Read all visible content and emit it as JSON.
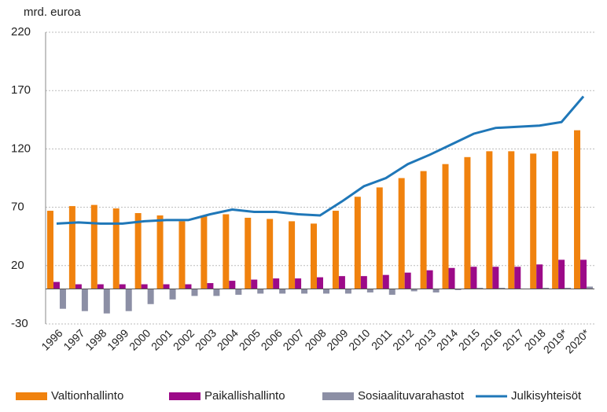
{
  "chart_data": {
    "type": "bar_line",
    "y_label": "mrd. euroa",
    "categories": [
      "1996",
      "1997",
      "1998",
      "1999",
      "2000",
      "2001",
      "2002",
      "2003",
      "2004",
      "2005",
      "2006",
      "2007",
      "2008",
      "2009",
      "2010",
      "2011",
      "2012",
      "2013",
      "2014",
      "2015",
      "2016",
      "2017",
      "2018",
      "2019*",
      "2020*"
    ],
    "series": [
      {
        "name": "Valtionhallinto",
        "color": "#f0820e",
        "kind": "bar",
        "values": [
          67,
          71,
          72,
          69,
          65,
          63,
          58,
          63,
          64,
          61,
          60,
          58,
          56,
          67,
          79,
          87,
          95,
          101,
          107,
          113,
          118,
          118,
          116,
          118,
          136
        ]
      },
      {
        "name": "Paikallishallinto",
        "color": "#9c0a88",
        "kind": "bar",
        "values": [
          6,
          4,
          4,
          4,
          4,
          4,
          4,
          5,
          7,
          8,
          9,
          9,
          10,
          11,
          11,
          12,
          14,
          16,
          18,
          19,
          19,
          19,
          21,
          25,
          25
        ]
      },
      {
        "name": "Sosiaalituvarahastot",
        "color": "#8c8fa5",
        "kind": "bar",
        "values": [
          -17,
          -19,
          -21,
          -19,
          -13,
          -9,
          -6,
          -6,
          -5,
          -4,
          -4,
          -4,
          -4,
          -4,
          -3,
          -5,
          -2,
          -3,
          -1,
          1,
          1,
          0,
          1,
          1,
          2
        ]
      },
      {
        "name": "Julkisyhteisöt",
        "color": "#1f77b8",
        "kind": "line",
        "values": [
          56,
          57,
          56,
          56,
          58,
          59,
          59,
          64,
          68,
          66,
          66,
          64,
          63,
          75,
          88,
          95,
          107,
          115,
          124,
          133,
          138,
          139,
          140,
          143,
          165
        ]
      }
    ],
    "ylim": [
      -30,
      220
    ],
    "yticks": [
      -30,
      20,
      70,
      120,
      170,
      220
    ],
    "grid": true
  }
}
